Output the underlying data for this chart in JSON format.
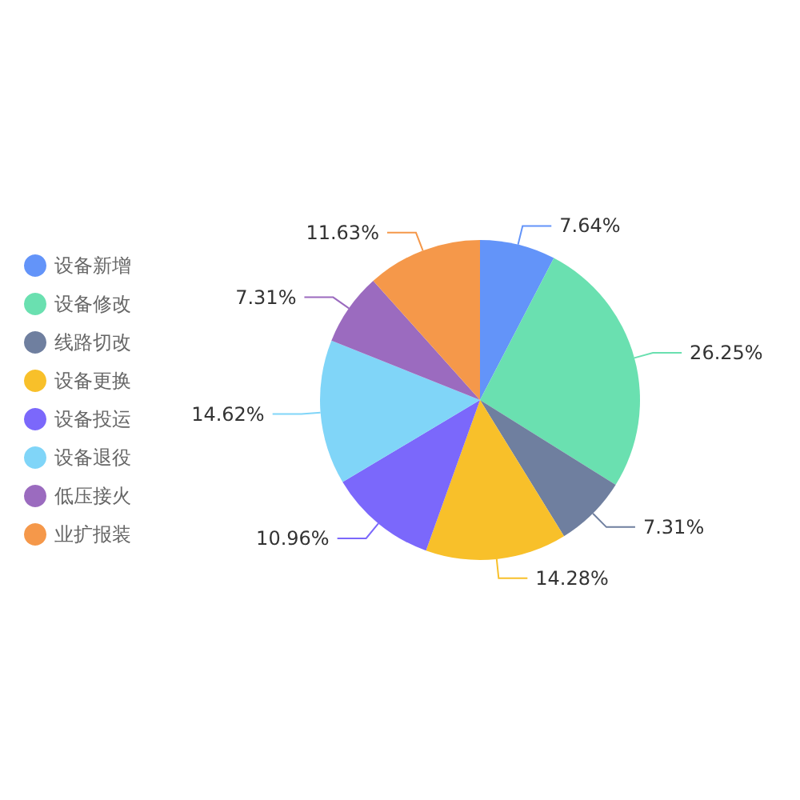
{
  "chart_data": {
    "type": "pie",
    "categories": [
      "设备新增",
      "设备修改",
      "线路切改",
      "设备更换",
      "设备投运",
      "设备退役",
      "低压接火",
      "业扩报装"
    ],
    "values": [
      7.64,
      26.25,
      7.31,
      14.28,
      10.96,
      14.62,
      7.31,
      11.63
    ],
    "value_labels": [
      "7.64%",
      "26.25%",
      "7.31%",
      "14.28%",
      "10.96%",
      "14.62%",
      "7.31%",
      "11.63%"
    ],
    "colors": [
      "#6394f9",
      "#6ae0b0",
      "#6f7f9f",
      "#f8c02a",
      "#7b68fb",
      "#80d5f8",
      "#9b6bbf",
      "#f5984a"
    ],
    "legend": "left"
  }
}
